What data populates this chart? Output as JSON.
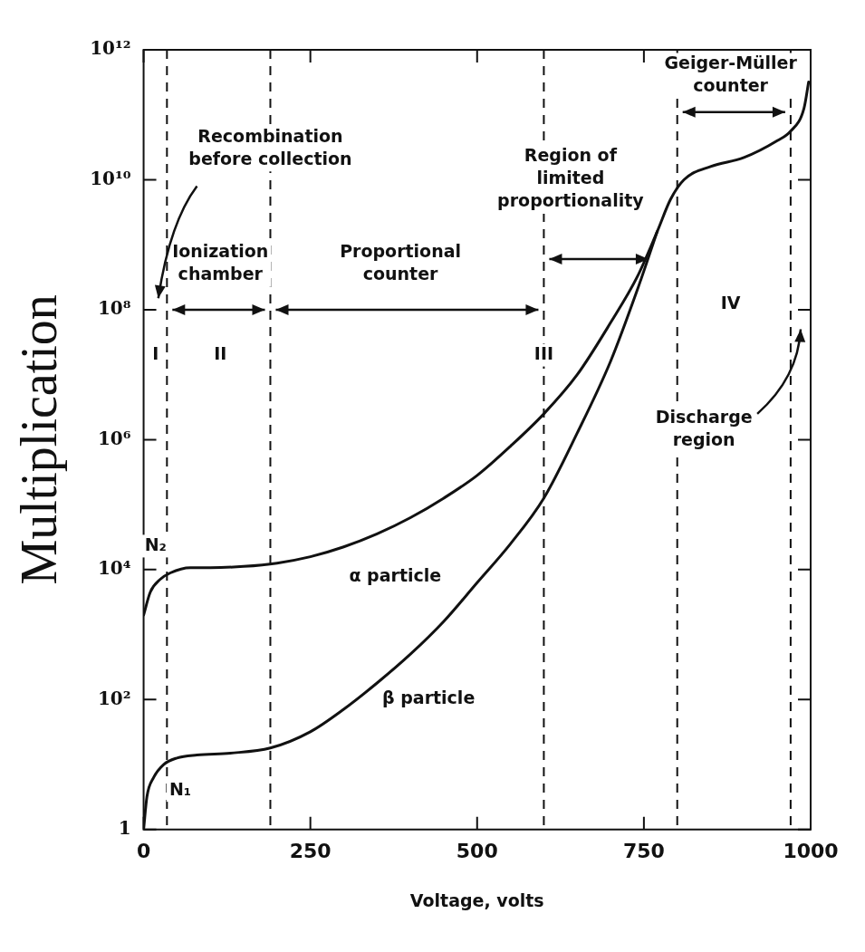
{
  "chart_data": {
    "type": "line",
    "xlabel": "Voltage, volts",
    "ylabel": "Multiplication",
    "xlim": [
      0,
      1000
    ],
    "xticks": [
      0,
      250,
      500,
      750,
      1000
    ],
    "ylim": [
      1,
      1000000000000.0
    ],
    "yticks": [
      1,
      {
        "value": 100.0,
        "label": "10²"
      },
      {
        "value": 10000.0,
        "label": "10⁴"
      },
      {
        "value": 1000000.0,
        "label": "10⁶"
      },
      {
        "value": 100000000.0,
        "label": "10⁸"
      },
      {
        "value": 10000000000.0,
        "label": "10¹⁰"
      },
      {
        "value": 1000000000000.0,
        "label": "10¹²"
      }
    ],
    "log": "y",
    "grid": false,
    "legend": false,
    "marker": "none",
    "line_style": "solid",
    "series": [
      {
        "name": "α particle",
        "color": "#111111",
        "x": [
          0,
          10,
          25,
          40,
          70,
          100,
          150,
          200,
          250,
          300,
          350,
          400,
          450,
          500,
          550,
          600,
          650,
          700,
          740,
          770,
          790,
          810,
          850,
          900,
          950,
          970,
          990,
          997
        ],
        "values": [
          2000,
          4500,
          7100,
          8900,
          10700,
          10700,
          11200,
          12600,
          15800,
          22400,
          35500,
          63000,
          126000,
          282000,
          794000,
          2500000,
          10000000,
          63000000,
          320000000,
          1600000000,
          5000000000,
          10000000000,
          16000000000,
          22000000000,
          40000000000,
          56000000000,
          126000000000,
          320000000000
        ]
      },
      {
        "name": "β particle",
        "color": "#111111",
        "x": [
          0,
          5,
          15,
          30,
          50,
          80,
          130,
          190,
          250,
          300,
          350,
          400,
          450,
          500,
          550,
          600,
          650,
          700,
          740,
          770
        ],
        "values": [
          1,
          3.2,
          6.3,
          10,
          12.6,
          14,
          15,
          18,
          32,
          71,
          180,
          500,
          1600,
          6300,
          25000,
          126000,
          1260000,
          16000000,
          200000000,
          1600000000
        ]
      }
    ],
    "ref_lines": [
      {
        "axis": "x",
        "value": 35,
        "line_style": "dashed",
        "color": "#111111"
      },
      {
        "axis": "x",
        "value": 190,
        "line_style": "dashed",
        "color": "#111111"
      },
      {
        "axis": "x",
        "value": 600,
        "line_style": "dashed",
        "color": "#111111"
      },
      {
        "axis": "x",
        "value": 800,
        "line_style": "dashed",
        "color": "#111111"
      },
      {
        "axis": "x",
        "value": 970,
        "line_style": "dashed",
        "color": "#111111"
      }
    ],
    "annotations": [
      {
        "text": "Recombination\nbefore collection",
        "x": 190,
        "y": 30000000000
      },
      "Ionization\nchamber",
      "Proportional\ncounter",
      "Region of\nlimited\nproportionality",
      "Geiger-Müller\ncounter",
      "Discharge\nregion",
      {
        "text": "I",
        "x": 18,
        "y": 20000000
      },
      {
        "text": "II",
        "x": 115,
        "y": 20000000
      },
      {
        "text": "III",
        "x": 600,
        "y": 20000000
      },
      {
        "text": "IV",
        "x": 880,
        "y": 120000000
      },
      {
        "text": "N₂",
        "x": 18,
        "y": 23000
      },
      {
        "text": "N₁",
        "x": 55,
        "y": 4
      }
    ]
  }
}
